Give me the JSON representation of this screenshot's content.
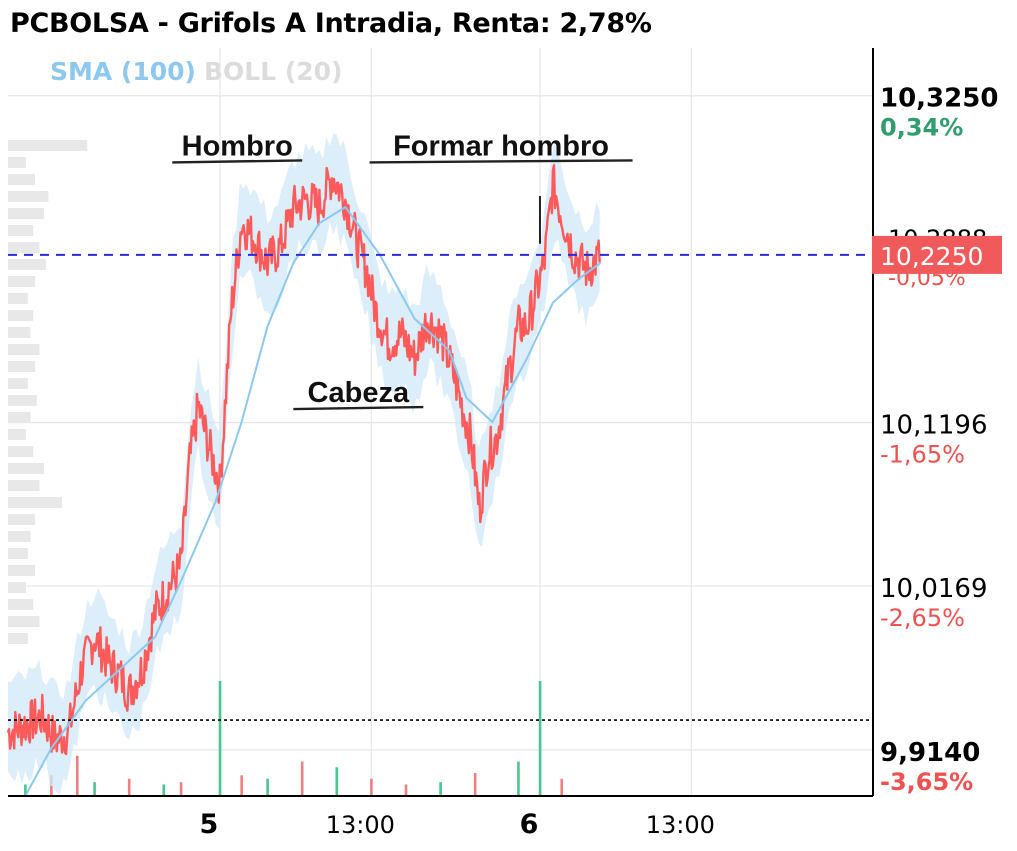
{
  "title": "PCBOLSA - Grifols A Intradia, Renta: 2,78%",
  "legend": {
    "sma": "SMA (100)",
    "boll": "BOLL (20)"
  },
  "colors": {
    "price": "#ff5a5a",
    "sma": "#8cc8f0",
    "band": "#cfe8f8",
    "current_line": "#2b2bdc",
    "reference_line": "#000000",
    "positive": "#2e9e6e",
    "negative": "#f05050",
    "volume_up": "#49c58f",
    "volume_down": "#f08080",
    "volume_profile": "#e8e8e8"
  },
  "chart_data": {
    "type": "line",
    "title": "PCBOLSA - Grifols A Intradia, Renta: 2,78%",
    "ylim": [
      9.885,
      10.355
    ],
    "y_ticks": [
      {
        "value": 10.325,
        "label": "10,3250",
        "pct": "0,34%",
        "pct_color": "positive"
      },
      {
        "value": 10.1196,
        "label": "10,1196",
        "pct": "-1,65%",
        "pct_color": "negative"
      },
      {
        "value": 10.0169,
        "label": "10,0169",
        "pct": "-2,65%",
        "pct_color": "negative"
      },
      {
        "value": 9.914,
        "label": "9,9140",
        "pct": "-3,65%",
        "pct_color": "negative"
      }
    ],
    "x_ticks": [
      {
        "label": "5",
        "bold": true,
        "t": 0.245
      },
      {
        "label": "13:00",
        "bold": false,
        "t": 0.42
      },
      {
        "label": "6",
        "bold": true,
        "t": 0.615
      },
      {
        "label": "13:00",
        "bold": false,
        "t": 0.79
      }
    ],
    "current": {
      "value": 10.225,
      "label": "10,2250",
      "hidden_label": "10,2888",
      "hidden_pct": "-0,05%"
    },
    "reference_value": 9.9327,
    "price_series": {
      "name": "Grifols A",
      "t": [
        0.0,
        0.02,
        0.04,
        0.055,
        0.07,
        0.085,
        0.1,
        0.115,
        0.13,
        0.14,
        0.155,
        0.17,
        0.185,
        0.2,
        0.21,
        0.22,
        0.232,
        0.245,
        0.258,
        0.27,
        0.285,
        0.3,
        0.315,
        0.33,
        0.345,
        0.36,
        0.375,
        0.39,
        0.405,
        0.415,
        0.425,
        0.44,
        0.455,
        0.47,
        0.485,
        0.5,
        0.515,
        0.525,
        0.535,
        0.545,
        0.555,
        0.565,
        0.575,
        0.59,
        0.6,
        0.61,
        0.62,
        0.63,
        0.64,
        0.655,
        0.67,
        0.685
      ],
      "values": [
        9.925,
        9.93,
        9.935,
        9.92,
        9.925,
        9.965,
        9.985,
        9.97,
        9.96,
        9.95,
        9.965,
        10.0,
        10.015,
        10.03,
        10.095,
        10.13,
        10.105,
        10.08,
        10.19,
        10.245,
        10.235,
        10.22,
        10.23,
        10.255,
        10.26,
        10.255,
        10.275,
        10.26,
        10.23,
        10.215,
        10.19,
        10.17,
        10.175,
        10.16,
        10.185,
        10.175,
        10.15,
        10.13,
        10.11,
        10.065,
        10.1,
        10.11,
        10.14,
        10.18,
        10.18,
        10.2,
        10.22,
        10.27,
        10.25,
        10.225,
        10.215,
        10.225
      ]
    },
    "sma_series": {
      "name": "SMA (100)",
      "t": [
        0.02,
        0.05,
        0.09,
        0.13,
        0.17,
        0.2,
        0.24,
        0.27,
        0.3,
        0.33,
        0.36,
        0.39,
        0.43,
        0.47,
        0.51,
        0.53,
        0.56,
        0.6,
        0.63,
        0.66,
        0.685
      ],
      "values": [
        9.885,
        9.915,
        9.945,
        9.965,
        9.985,
        10.02,
        10.07,
        10.12,
        10.18,
        10.22,
        10.245,
        10.255,
        10.225,
        10.185,
        10.165,
        10.135,
        10.12,
        10.16,
        10.195,
        10.21,
        10.22
      ]
    },
    "band_width": 0.022,
    "volume": {
      "t": [
        0.02,
        0.05,
        0.08,
        0.1,
        0.14,
        0.18,
        0.2,
        0.245,
        0.27,
        0.3,
        0.34,
        0.38,
        0.42,
        0.46,
        0.5,
        0.54,
        0.59,
        0.615,
        0.64
      ],
      "values": [
        0.1,
        0.18,
        0.35,
        0.12,
        0.15,
        0.1,
        0.12,
        1.0,
        0.18,
        0.15,
        0.3,
        0.25,
        0.15,
        0.1,
        0.12,
        0.2,
        0.3,
        1.0,
        0.15
      ],
      "up": [
        true,
        false,
        false,
        true,
        false,
        true,
        false,
        true,
        false,
        true,
        false,
        true,
        false,
        false,
        true,
        false,
        true,
        true,
        false
      ]
    },
    "annotations": [
      {
        "text": "Hombro",
        "t": 0.265,
        "value": 10.285
      },
      {
        "text": "Formar hombro",
        "t": 0.57,
        "value": 10.285
      },
      {
        "text": "Cabeza",
        "t": 0.405,
        "value": 10.13
      }
    ],
    "grid": true
  }
}
